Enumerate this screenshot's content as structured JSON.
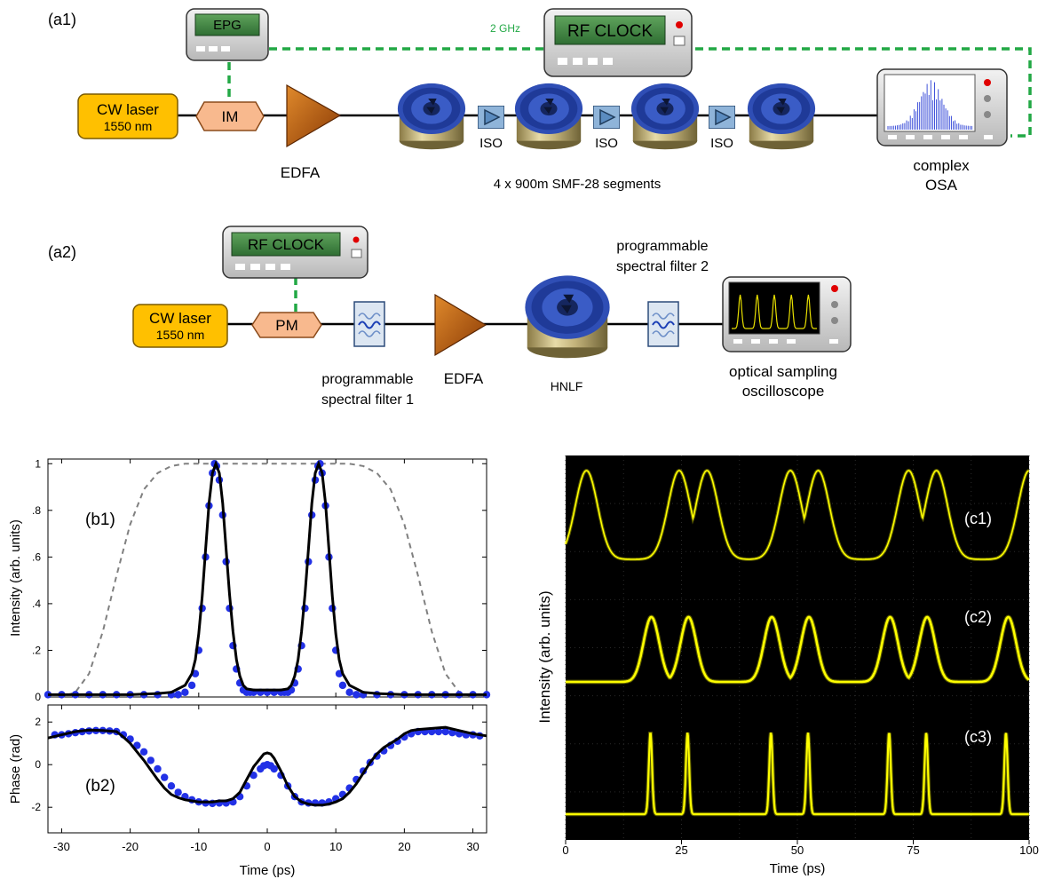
{
  "setup_a1": {
    "panel_label": "(a1)",
    "epg_label": "EPG",
    "rf_clock_label": "RF CLOCK",
    "clock_freq": "2 GHz",
    "laser_label": "CW laser",
    "laser_wavelength": "1550 nm",
    "modulator_label": "IM",
    "amplifier_label": "EDFA",
    "isolator_label": "ISO",
    "fiber_caption": "4 x 900m SMF-28 segments",
    "analyzer_line1": "complex",
    "analyzer_line2": "OSA"
  },
  "setup_a2": {
    "panel_label": "(a2)",
    "rf_clock_label": "RF CLOCK",
    "laser_label": "CW laser",
    "laser_wavelength": "1550 nm",
    "modulator_label": "PM",
    "filter1_line1": "programmable",
    "filter1_line2": "spectral filter 1",
    "amplifier_label": "EDFA",
    "fiber_label": "HNLF",
    "filter2_line1": "programmable",
    "filter2_line2": "spectral filter 2",
    "scope_line1": "optical sampling",
    "scope_line2": "oscilloscope"
  },
  "colors": {
    "laser": "#ffc000",
    "modulator": "#f8b98e",
    "edfa": "#c55a11",
    "fiber_spool": "#2f4eb5",
    "clock_link": "#22a845",
    "measured": "#2231e6",
    "model": "#000000",
    "reference": "#808080",
    "trace": "#ffff00"
  },
  "plot_b": {
    "b1_label": "(b1)",
    "b2_label": "(b2)",
    "xlabel": "Time (ps)",
    "ylabel_b1": "Intensity (arb. units)",
    "ylabel_b2": "Phase (rad)",
    "x_ticks": [
      "-30",
      "-20",
      "-10",
      "0",
      "10",
      "20",
      "30"
    ],
    "y_ticks_b1": [
      "0",
      ".2",
      ".4",
      ".6",
      ".8",
      "1"
    ],
    "y_ticks_b2": [
      "-2",
      "0",
      "2"
    ]
  },
  "plot_c": {
    "c1_label": "(c1)",
    "c2_label": "(c2)",
    "c3_label": "(c3)",
    "xlabel": "Time (ps)",
    "ylabel": "Intensity (arb. units)",
    "x_ticks": [
      "0",
      "25",
      "50",
      "75",
      "100"
    ]
  },
  "chart_data": [
    {
      "type": "line",
      "panel": "b1",
      "xlabel": "Time (ps)",
      "ylabel": "Intensity (arb. units)",
      "xlim": [
        -32,
        32
      ],
      "ylim": [
        0,
        1.02
      ],
      "series": [
        {
          "style": "dots",
          "x": [
            -32,
            -30,
            -28,
            -26,
            -24,
            -22,
            -20,
            -18,
            -16,
            -14,
            -13,
            -12,
            -11,
            -10.5,
            -10,
            -9.5,
            -9,
            -8.5,
            -8,
            -7.7,
            -7.4,
            -7,
            -6.5,
            -6,
            -5.5,
            -5,
            -4.5,
            -4,
            -3.5,
            -3,
            -2.5,
            -2,
            -1,
            0,
            1,
            2,
            2.5,
            3,
            3.5,
            4,
            4.5,
            5,
            5.5,
            6,
            6.5,
            7,
            7.4,
            7.7,
            8,
            8.5,
            9,
            9.5,
            10,
            10.5,
            11,
            12,
            13,
            14,
            16,
            18,
            20,
            22,
            24,
            26,
            28,
            30,
            32
          ],
          "y": [
            0.01,
            0.01,
            0.01,
            0.01,
            0.01,
            0.01,
            0.01,
            0.01,
            0.01,
            0.01,
            0.01,
            0.02,
            0.05,
            0.1,
            0.2,
            0.38,
            0.6,
            0.82,
            0.96,
            1.0,
            0.99,
            0.93,
            0.78,
            0.58,
            0.38,
            0.22,
            0.12,
            0.06,
            0.03,
            0.02,
            0.02,
            0.02,
            0.02,
            0.02,
            0.02,
            0.02,
            0.02,
            0.02,
            0.03,
            0.06,
            0.12,
            0.22,
            0.38,
            0.58,
            0.78,
            0.93,
            0.99,
            1.0,
            0.96,
            0.82,
            0.6,
            0.38,
            0.2,
            0.1,
            0.05,
            0.02,
            0.01,
            0.01,
            0.01,
            0.01,
            0.01,
            0.01,
            0.01,
            0.01,
            0.01,
            0.01,
            0.01
          ]
        },
        {
          "style": "solid",
          "x": [
            -32,
            -26,
            -20,
            -16,
            -14,
            -12,
            -11,
            -10.5,
            -10,
            -9.5,
            -9,
            -8.5,
            -8,
            -7.5,
            -7,
            -6.5,
            -6,
            -5.5,
            -5,
            -4.5,
            -4,
            -3.5,
            -3,
            -2,
            -1,
            0,
            1,
            2,
            3,
            3.5,
            4,
            4.5,
            5,
            5.5,
            6,
            6.5,
            7,
            7.5,
            8,
            8.5,
            9,
            9.5,
            10,
            10.5,
            11,
            12,
            14,
            16,
            20,
            26,
            32
          ],
          "y": [
            0.01,
            0.01,
            0.01,
            0.015,
            0.02,
            0.05,
            0.1,
            0.16,
            0.27,
            0.43,
            0.63,
            0.83,
            0.96,
            1.0,
            0.96,
            0.83,
            0.63,
            0.44,
            0.28,
            0.16,
            0.09,
            0.05,
            0.035,
            0.03,
            0.03,
            0.03,
            0.03,
            0.03,
            0.035,
            0.05,
            0.09,
            0.16,
            0.28,
            0.44,
            0.63,
            0.83,
            0.96,
            1.0,
            0.96,
            0.83,
            0.63,
            0.43,
            0.27,
            0.16,
            0.1,
            0.05,
            0.02,
            0.015,
            0.01,
            0.01,
            0.01
          ]
        },
        {
          "style": "dashed",
          "x": [
            -32,
            -30,
            -28,
            -26,
            -24,
            -22,
            -20,
            -18,
            -16,
            -14,
            -12,
            -10,
            -5,
            0,
            5,
            10,
            12,
            14,
            16,
            18,
            20,
            22,
            24,
            26,
            28,
            30,
            32
          ],
          "y": [
            0.0,
            0.0,
            0.02,
            0.1,
            0.28,
            0.52,
            0.74,
            0.89,
            0.96,
            0.99,
            1.0,
            1.0,
            1.0,
            1.0,
            1.0,
            1.0,
            1.0,
            0.99,
            0.96,
            0.89,
            0.74,
            0.52,
            0.28,
            0.1,
            0.02,
            0.0,
            0.0
          ]
        }
      ]
    },
    {
      "type": "line",
      "panel": "b2",
      "xlabel": "Time (ps)",
      "ylabel": "Phase (rad)",
      "xlim": [
        -32,
        32
      ],
      "ylim": [
        -3.2,
        2.8
      ],
      "series": [
        {
          "style": "dots",
          "x": [
            -31,
            -30,
            -29,
            -28,
            -27,
            -26,
            -25,
            -24,
            -23,
            -22,
            -21,
            -20,
            -19,
            -18,
            -17,
            -16,
            -15,
            -14,
            -13,
            -12,
            -11,
            -10,
            -9,
            -8,
            -7,
            -6,
            -5,
            -4,
            -3,
            -2,
            -1,
            -0.5,
            0,
            0.5,
            1,
            2,
            3,
            4,
            5,
            6,
            7,
            8,
            9,
            10,
            11,
            12,
            13,
            14,
            15,
            16,
            17,
            18,
            19,
            20,
            21,
            22,
            23,
            24,
            25,
            26,
            27,
            28,
            29,
            30,
            31
          ],
          "y": [
            1.4,
            1.4,
            1.45,
            1.5,
            1.55,
            1.58,
            1.6,
            1.6,
            1.58,
            1.55,
            1.4,
            1.2,
            0.9,
            0.6,
            0.2,
            -0.2,
            -0.6,
            -1.0,
            -1.3,
            -1.5,
            -1.65,
            -1.75,
            -1.8,
            -1.82,
            -1.8,
            -1.8,
            -1.75,
            -1.5,
            -1.0,
            -0.5,
            -0.2,
            -0.05,
            0.0,
            -0.05,
            -0.2,
            -0.5,
            -1.0,
            -1.5,
            -1.75,
            -1.8,
            -1.8,
            -1.8,
            -1.75,
            -1.6,
            -1.4,
            -1.1,
            -0.7,
            -0.3,
            0.1,
            0.4,
            0.65,
            0.9,
            1.1,
            1.3,
            1.45,
            1.55,
            1.55,
            1.55,
            1.55,
            1.55,
            1.5,
            1.45,
            1.4,
            1.4,
            1.35
          ]
        },
        {
          "style": "solid",
          "x": [
            -32,
            -30,
            -28,
            -26,
            -24,
            -22,
            -21,
            -20,
            -19,
            -18,
            -17,
            -16,
            -15,
            -14,
            -13,
            -12,
            -11,
            -10,
            -9,
            -8,
            -7,
            -6,
            -5,
            -4,
            -3,
            -2,
            -1,
            -0.5,
            0,
            0.5,
            1,
            2,
            3,
            4,
            5,
            6,
            7,
            8,
            9,
            10,
            11,
            12,
            13,
            14,
            15,
            16,
            17,
            18,
            19,
            20,
            21,
            22,
            24,
            26,
            28,
            30,
            32
          ],
          "y": [
            1.25,
            1.4,
            1.55,
            1.62,
            1.6,
            1.55,
            1.3,
            1.0,
            0.6,
            0.2,
            -0.25,
            -0.7,
            -1.1,
            -1.4,
            -1.55,
            -1.65,
            -1.7,
            -1.75,
            -1.75,
            -1.75,
            -1.7,
            -1.7,
            -1.6,
            -1.3,
            -0.7,
            -0.1,
            0.3,
            0.5,
            0.55,
            0.5,
            0.3,
            -0.3,
            -1.0,
            -1.5,
            -1.75,
            -1.85,
            -1.9,
            -1.9,
            -1.85,
            -1.75,
            -1.6,
            -1.3,
            -0.9,
            -0.4,
            0.1,
            0.5,
            0.8,
            1.0,
            1.2,
            1.45,
            1.6,
            1.65,
            1.7,
            1.75,
            1.6,
            1.45,
            1.35
          ]
        }
      ]
    },
    {
      "type": "line",
      "panel": "c",
      "xlabel": "Time (ps)",
      "ylabel": "Intensity (arb. units)",
      "xlim": [
        0,
        100
      ],
      "series": [
        {
          "label": "(c1)",
          "pulse_centers_ps": [
            4.5,
            24.5,
            30.5,
            48.5,
            54.5,
            74.0,
            80.0,
            100.0
          ],
          "pulse_width_ps": 2.4
        },
        {
          "label": "(c2)",
          "pulse_centers_ps": [
            18.5,
            26.5,
            44.5,
            52.5,
            70.0,
            78.0,
            95.5
          ],
          "pulse_width_ps": 1.7
        },
        {
          "label": "(c3)",
          "pulse_centers_ps": [
            18.3,
            26.3,
            44.3,
            52.3,
            69.8,
            77.8,
            95.0
          ],
          "pulse_width_ps": 0.35
        }
      ]
    }
  ]
}
